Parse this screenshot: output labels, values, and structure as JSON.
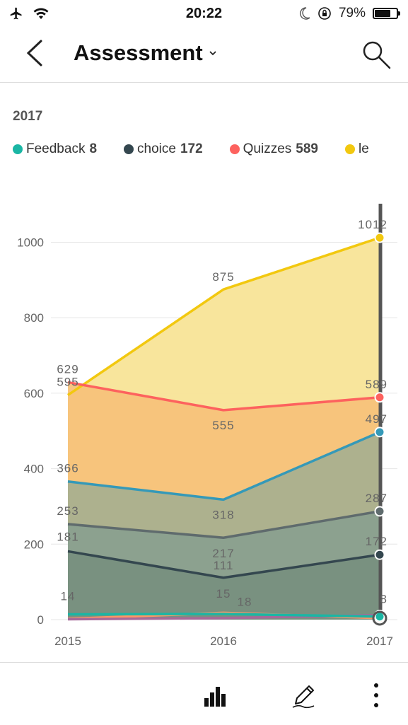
{
  "status": {
    "time": "20:22",
    "battery": "79%",
    "battery_level": 0.79,
    "icons": [
      "airplane-icon",
      "wifi-icon",
      "moon-icon",
      "rotation-lock-icon",
      "battery-icon"
    ]
  },
  "header": {
    "title": "Assessment",
    "icons": [
      "back-icon",
      "chevron-down-icon",
      "search-icon"
    ]
  },
  "selected_year": "2017",
  "legend": [
    {
      "name": "Feedback",
      "value": "8",
      "color": "#1ab6a4"
    },
    {
      "name": "choice",
      "value": "172",
      "color": "#34474f"
    },
    {
      "name": "Quizzes",
      "value": "589",
      "color": "#fd625e"
    },
    {
      "name": "le",
      "value": "",
      "color": "#f2c80f"
    }
  ],
  "chart_data": {
    "type": "area",
    "x": [
      "2015",
      "2016",
      "2017"
    ],
    "yticks": [
      "0",
      "200",
      "400",
      "600",
      "800",
      "1000"
    ],
    "ylim": [
      0,
      1130
    ],
    "selected_x": "2017",
    "series": [
      {
        "name": "le",
        "color": "#f2c80f",
        "fill": "#f8e497",
        "values": [
          595,
          875,
          1012
        ],
        "labels": [
          "595",
          "875",
          "1012"
        ]
      },
      {
        "name": "Quizzes",
        "color": "#fd625e",
        "fill": "#f7c27a",
        "values": [
          629,
          555,
          589
        ],
        "labels": [
          "629",
          "555",
          "589"
        ]
      },
      {
        "name": "",
        "color": "#3599b8",
        "fill": "#a9b08f",
        "values": [
          366,
          318,
          497
        ],
        "labels": [
          "366",
          "318",
          "497"
        ]
      },
      {
        "name": "",
        "color": "#5f6b6d",
        "fill": "#8aa08f",
        "values": [
          253,
          217,
          287
        ],
        "labels": [
          "253",
          "217",
          "287"
        ]
      },
      {
        "name": "choice",
        "color": "#34474f",
        "fill": "#78907f",
        "values": [
          181,
          111,
          172
        ],
        "labels": [
          "181",
          "111",
          "172"
        ]
      },
      {
        "name": "",
        "color": "#fe9666",
        "fill": "",
        "values": [
          2,
          18,
          4
        ],
        "labels": [
          "",
          "18",
          ""
        ]
      },
      {
        "name": "",
        "color": "#a66999",
        "fill": "",
        "values": [
          1,
          4,
          12
        ],
        "labels": [
          "",
          "",
          ""
        ]
      },
      {
        "name": "Feedback",
        "color": "#1ab6a4",
        "fill": "",
        "values": [
          14,
          15,
          8
        ],
        "labels": [
          "14",
          "15",
          "8"
        ]
      }
    ]
  },
  "bottom_bar": {
    "icons": [
      "bar-chart-icon",
      "pencil-icon",
      "more-vertical-icon"
    ]
  }
}
